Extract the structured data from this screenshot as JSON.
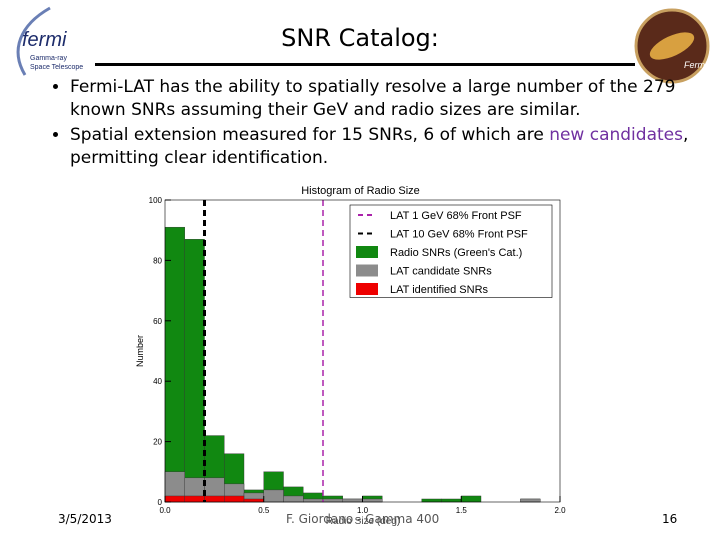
{
  "title": "SNR Catalog:",
  "logo": {
    "name": "fermi",
    "subtitle": [
      "Gamma-ray",
      "Space Telescope"
    ]
  },
  "badge": "Fermi",
  "bullets": [
    [
      {
        "text": "Fermi-LAT has the ability to spatially resolve a large number of the 279 known SNRs assuming their GeV and radio sizes are similar."
      }
    ],
    [
      {
        "text": "Spatial extension measured for 15 SNRs, 6 of which are "
      },
      {
        "text": "new candidates",
        "highlight": "#7030a0"
      },
      {
        "text": ", permitting clear identification."
      }
    ]
  ],
  "footer": {
    "date": "3/5/2013",
    "author": "F. Giordano - Gamma 400",
    "page": "16"
  },
  "chart_data": {
    "type": "histogram",
    "title": "Histogram of Radio Size",
    "xlabel": "Radio Size (deg)",
    "ylabel": "Number",
    "bins": [
      0.0,
      0.1,
      0.2,
      0.3,
      0.4,
      0.5,
      0.6,
      0.7,
      0.8,
      0.9,
      1.0,
      1.1,
      1.2,
      1.3,
      1.4,
      1.5,
      1.6,
      1.7,
      1.8,
      1.9,
      2.0
    ],
    "series": [
      {
        "name": "Radio SNRs (Green's Cat.)",
        "color": "#118811",
        "values": [
          91,
          87,
          22,
          16,
          4,
          10,
          5,
          3,
          2,
          1,
          2,
          0,
          0,
          1,
          1,
          2,
          0,
          0,
          1,
          0
        ]
      },
      {
        "name": "LAT candidate SNRs",
        "color": "#8c8c8c",
        "values": [
          10,
          8,
          8,
          6,
          3,
          4,
          2,
          1,
          1,
          1,
          1,
          0,
          0,
          0,
          0,
          0,
          0,
          0,
          1,
          0
        ]
      },
      {
        "name": "LAT identified SNRs",
        "color": "#ee0000",
        "values": [
          2,
          2,
          2,
          2,
          1,
          0,
          0,
          0,
          0,
          0,
          0,
          0,
          0,
          0,
          0,
          0,
          0,
          0,
          0,
          0
        ]
      }
    ],
    "reference_lines": [
      {
        "name": "LAT 1 GeV 68% Front PSF",
        "color": "#aa22aa",
        "x": 0.8
      },
      {
        "name": "LAT 10 GeV 68% Front PSF",
        "color": "#000000",
        "x": 0.2
      }
    ],
    "xlim": [
      0,
      2
    ],
    "ylim": [
      0,
      100
    ],
    "xticks": [
      {
        "value": 0,
        "label": "0.0"
      },
      {
        "value": 0.5,
        "label": "0.5"
      },
      {
        "value": 1,
        "label": "1.0"
      },
      {
        "value": 1.5,
        "label": "1.5"
      },
      {
        "value": 2,
        "label": "2.0"
      }
    ],
    "yticks": [
      0,
      20,
      40,
      60,
      80,
      100
    ],
    "overlay": true,
    "legend": "upper right"
  }
}
